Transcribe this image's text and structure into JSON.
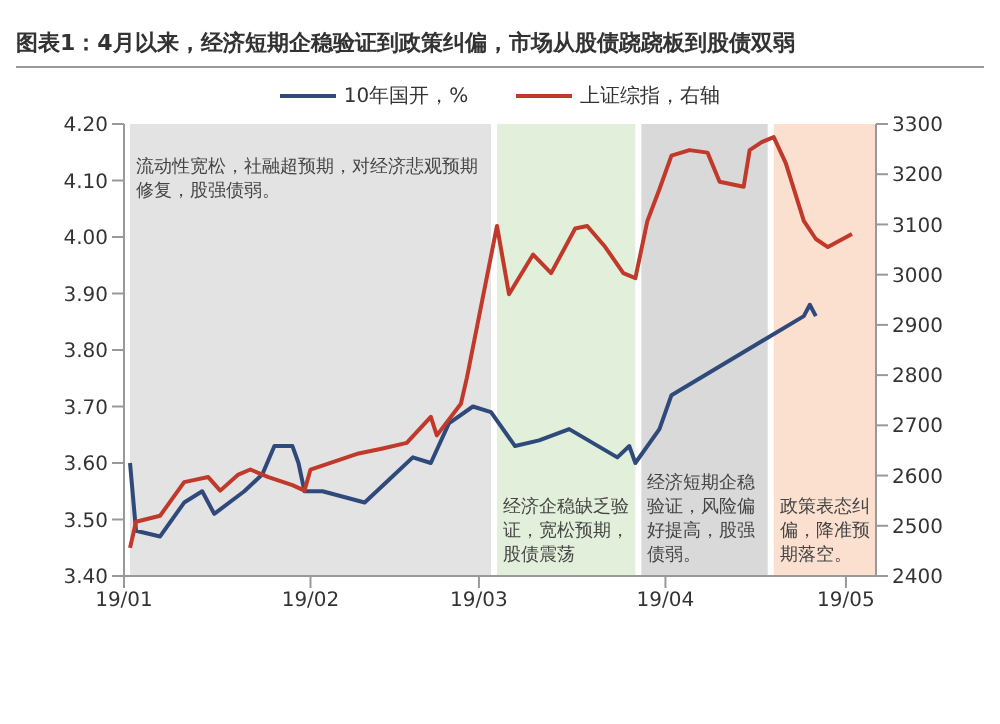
{
  "chart_data": {
    "type": "line",
    "title": "图表1：4月以来，经济短期企稳验证到政策纠偏，市场从股债跷跷板到股债双弱",
    "legend": "top",
    "series": [
      {
        "name": "10年国开，%",
        "color": "#2f4a7a",
        "x": [
          "--01-02",
          "--01-03",
          "--01-07",
          "--01-11",
          "--01-14",
          "--01-16",
          "--01-21",
          "--01-24",
          "--01-26",
          "--01-29",
          "--01-30",
          "--01-31",
          "--02-03",
          "--02-10",
          "--02-14",
          "--02-18",
          "--02-21",
          "--02-24",
          "--02-28",
          "--03-03",
          "--03-07",
          "--03-11",
          "--03-16",
          "--03-24",
          "--03-26",
          "--03-27",
          "--03-31",
          "--04-02",
          "--04-24",
          "--04-25",
          "--04-26"
        ],
        "values": [
          3.6,
          3.48,
          3.47,
          3.53,
          3.55,
          3.51,
          3.55,
          3.58,
          3.63,
          3.63,
          3.6,
          3.55,
          3.55,
          3.53,
          3.57,
          3.61,
          3.6,
          3.67,
          3.7,
          3.69,
          3.63,
          3.64,
          3.66,
          3.61,
          3.63,
          3.6,
          3.66,
          3.72,
          3.86,
          3.88,
          3.86
        ]
      },
      {
        "name": "上证综指，右轴",
        "color": "#c0392b",
        "axis": "y2",
        "x": [
          "--01-02",
          "--01-03",
          "--01-07",
          "--01-11",
          "--01-15",
          "--01-17",
          "--01-20",
          "--01-22",
          "--01-25",
          "--01-29",
          "--01-31",
          "--02-01",
          "--02-09",
          "--02-13",
          "--02-17",
          "--02-21",
          "--02-22",
          "--02-26",
          "--02-27",
          "--03-04",
          "--03-06",
          "--03-10",
          "--03-13",
          "--03-17",
          "--03-19",
          "--03-22",
          "--03-25",
          "--03-27",
          "--03-29",
          "--03-31",
          "--04-02",
          "--04-05",
          "--04-08",
          "--04-10",
          "--04-14",
          "--04-15",
          "--04-17",
          "--04-19",
          "--04-21",
          "--04-24",
          "--04-26",
          "--04-28",
          "--05-02"
        ],
        "values": [
          2456,
          2508,
          2520,
          2587,
          2597,
          2570,
          2602,
          2612,
          2597,
          2581,
          2570,
          2612,
          2644,
          2654,
          2665,
          2717,
          2680,
          2743,
          2795,
          3097,
          2961,
          3040,
          3003,
          3092,
          3097,
          3055,
          3003,
          2993,
          3107,
          3170,
          3237,
          3248,
          3243,
          3185,
          3175,
          3248,
          3264,
          3274,
          3222,
          3107,
          3071,
          3055,
          3081
        ]
      }
    ],
    "xlim": [
      "--01-01",
      "--05-06"
    ],
    "xticks": [
      {
        "value": "--01-01",
        "label": "19/01"
      },
      {
        "value": "--02-01",
        "label": "19/02"
      },
      {
        "value": "--03-01",
        "label": "19/03"
      },
      {
        "value": "--04-01",
        "label": "19/04"
      },
      {
        "value": "--05-01",
        "label": "19/05"
      }
    ],
    "ylim": [
      3.4,
      4.2
    ],
    "yticks": [
      {
        "value": 3.4,
        "label": "3.40"
      },
      {
        "value": 3.5,
        "label": "3.50"
      },
      {
        "value": 3.6,
        "label": "3.60"
      },
      {
        "value": 3.7,
        "label": "3.70"
      },
      {
        "value": 3.8,
        "label": "3.80"
      },
      {
        "value": 3.9,
        "label": "3.90"
      },
      {
        "value": 4.0,
        "label": "4.00"
      },
      {
        "value": 4.1,
        "label": "4.10"
      },
      {
        "value": 4.2,
        "label": "4.20"
      }
    ],
    "y2lim": [
      2400,
      3300
    ],
    "y2ticks": [
      2400,
      2500,
      2600,
      2700,
      2800,
      2900,
      3000,
      3100,
      3200,
      3300
    ],
    "bands": [
      {
        "axis": "x",
        "from": "--01-02",
        "to": "--03-03",
        "label": "流动性宽松，社融超预期，对经济悲观预期修复，股强债弱。",
        "color": "#e3e3e3"
      },
      {
        "axis": "x",
        "from": "--03-04",
        "to": "--03-27",
        "label": "经济企稳缺乏验证，宽松预期，股债震荡",
        "color": "#e2efda"
      },
      {
        "axis": "x",
        "from": "--03-28",
        "to": "--04-18",
        "label": "经济短期企稳验证，风险偏好提高，股强债弱。",
        "color": "#d9d9d9"
      },
      {
        "axis": "x",
        "from": "--04-19",
        "to": "--05-06",
        "label": "政策表态纠偏，降准预期落空。",
        "color": "#fbe0cf"
      }
    ]
  }
}
